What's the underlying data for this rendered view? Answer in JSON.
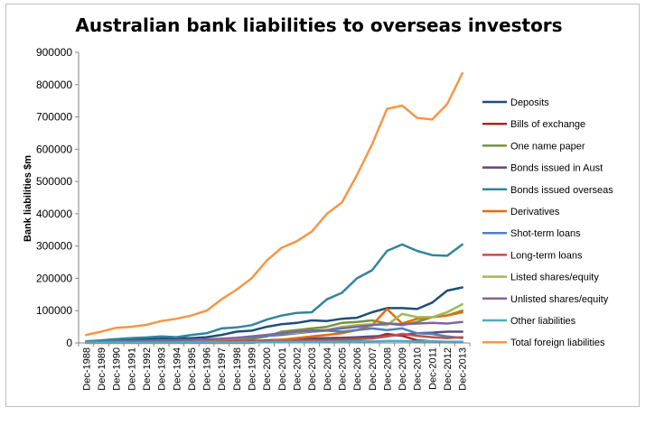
{
  "chart_data": {
    "type": "line",
    "title": "Australian bank liabilities to overseas investors",
    "xlabel": "",
    "ylabel": "Bank liabilities $m",
    "ylim": [
      0,
      900000
    ],
    "yticks": [
      0,
      100000,
      200000,
      300000,
      400000,
      500000,
      600000,
      700000,
      800000,
      900000
    ],
    "grid": false,
    "legend": "right",
    "categories": [
      "Dec-1988",
      "Dec-1989",
      "Dec-1990",
      "Dec-1991",
      "Dec-1992",
      "Dec-1993",
      "Dec-1994",
      "Dec-1995",
      "Dec-1996",
      "Dec-1997",
      "Dec-1998",
      "Dec-1999",
      "Dec-2000",
      "Dec-2001",
      "Dec-2002",
      "Dec-2003",
      "Dec-2004",
      "Dec-2005",
      "Dec-2006",
      "Dec-2007",
      "Dec-2008",
      "Dec-2009",
      "Dec-2010",
      "Dec-2011",
      "Dec-2012",
      "Dec-2013"
    ],
    "series": [
      {
        "name": "Deposits",
        "color": "#1f4e79",
        "values": [
          5000,
          7000,
          10000,
          11000,
          12000,
          13000,
          14000,
          15000,
          18000,
          25000,
          35000,
          38000,
          50000,
          58000,
          62000,
          70000,
          68000,
          75000,
          78000,
          95000,
          108000,
          108000,
          105000,
          125000,
          162000,
          172000
        ]
      },
      {
        "name": "Bills of exchange",
        "color": "#9b2d2a",
        "values": [
          2000,
          2000,
          2000,
          2000,
          2000,
          3000,
          3000,
          3000,
          3000,
          4000,
          4000,
          5000,
          5000,
          5000,
          6000,
          7000,
          8000,
          9000,
          12000,
          15000,
          28000,
          22000,
          8000,
          5000,
          3000,
          3000
        ]
      },
      {
        "name": "One name paper",
        "color": "#77933c",
        "values": [
          1000,
          1000,
          1000,
          1000,
          2000,
          2000,
          2000,
          3000,
          4000,
          6000,
          8000,
          12000,
          20000,
          35000,
          40000,
          45000,
          50000,
          62000,
          65000,
          70000,
          60000,
          55000,
          65000,
          80000,
          85000,
          100000
        ]
      },
      {
        "name": "Bonds issued in Aust",
        "color": "#5f497a",
        "values": [
          1000,
          1000,
          1000,
          2000,
          2000,
          2000,
          2000,
          3000,
          3000,
          4000,
          5000,
          6000,
          8000,
          10000,
          12000,
          14000,
          15000,
          16000,
          18000,
          20000,
          22000,
          25000,
          30000,
          32000,
          35000,
          35000
        ]
      },
      {
        "name": "Bonds issued overseas",
        "color": "#31859c",
        "values": [
          5000,
          8000,
          12000,
          15000,
          17000,
          20000,
          18000,
          25000,
          30000,
          45000,
          48000,
          55000,
          72000,
          85000,
          93000,
          95000,
          135000,
          155000,
          200000,
          225000,
          285000,
          305000,
          285000,
          272000,
          270000,
          305000
        ]
      },
      {
        "name": "Derivatives",
        "color": "#e46c0a",
        "values": [
          0,
          0,
          0,
          0,
          0,
          0,
          0,
          0,
          0,
          0,
          0,
          0,
          5000,
          10000,
          15000,
          20000,
          25000,
          30000,
          40000,
          55000,
          105000,
          60000,
          75000,
          80000,
          85000,
          95000
        ]
      },
      {
        "name": "Shot-term loans",
        "color": "#4f81bd",
        "values": [
          3000,
          4000,
          5000,
          6000,
          7000,
          8000,
          8000,
          9000,
          10000,
          12000,
          15000,
          18000,
          22000,
          25000,
          30000,
          35000,
          38000,
          35000,
          40000,
          45000,
          40000,
          45000,
          30000,
          28000,
          20000,
          15000
        ]
      },
      {
        "name": "Long-term loans",
        "color": "#c0504d",
        "values": [
          2000,
          2000,
          2000,
          2000,
          3000,
          3000,
          3000,
          3000,
          4000,
          4000,
          5000,
          5000,
          6000,
          6000,
          7000,
          8000,
          8000,
          10000,
          12000,
          14000,
          20000,
          28000,
          22000,
          18000,
          15000,
          18000
        ]
      },
      {
        "name": "Listed shares/equity",
        "color": "#9bbb59",
        "values": [
          2000,
          3000,
          3000,
          4000,
          5000,
          6000,
          7000,
          8000,
          10000,
          12000,
          15000,
          20000,
          25000,
          30000,
          32000,
          38000,
          40000,
          50000,
          55000,
          58000,
          55000,
          90000,
          80000,
          80000,
          95000,
          120000
        ]
      },
      {
        "name": "Unlisted shares/equity",
        "color": "#8064a2",
        "values": [
          2000,
          3000,
          4000,
          5000,
          6000,
          7000,
          8000,
          9000,
          11000,
          13000,
          16000,
          20000,
          25000,
          30000,
          35000,
          38000,
          40000,
          45000,
          50000,
          55000,
          60000,
          58000,
          60000,
          62000,
          60000,
          65000
        ]
      },
      {
        "name": "Other liabilities",
        "color": "#4bacc6",
        "values": [
          1000,
          1000,
          1000,
          1000,
          1000,
          1000,
          1000,
          2000,
          2000,
          2000,
          2000,
          2000,
          3000,
          3000,
          3000,
          3000,
          4000,
          4000,
          5000,
          5000,
          6000,
          6000,
          5000,
          5000,
          4000,
          4000
        ]
      },
      {
        "name": "Total foreign liabilities",
        "color": "#f79646",
        "values": [
          25000,
          35000,
          47000,
          50000,
          56000,
          68000,
          75000,
          85000,
          100000,
          135000,
          165000,
          200000,
          255000,
          295000,
          315000,
          345000,
          400000,
          435000,
          520000,
          615000,
          725000,
          735000,
          697000,
          692000,
          740000,
          835000
        ]
      }
    ]
  }
}
